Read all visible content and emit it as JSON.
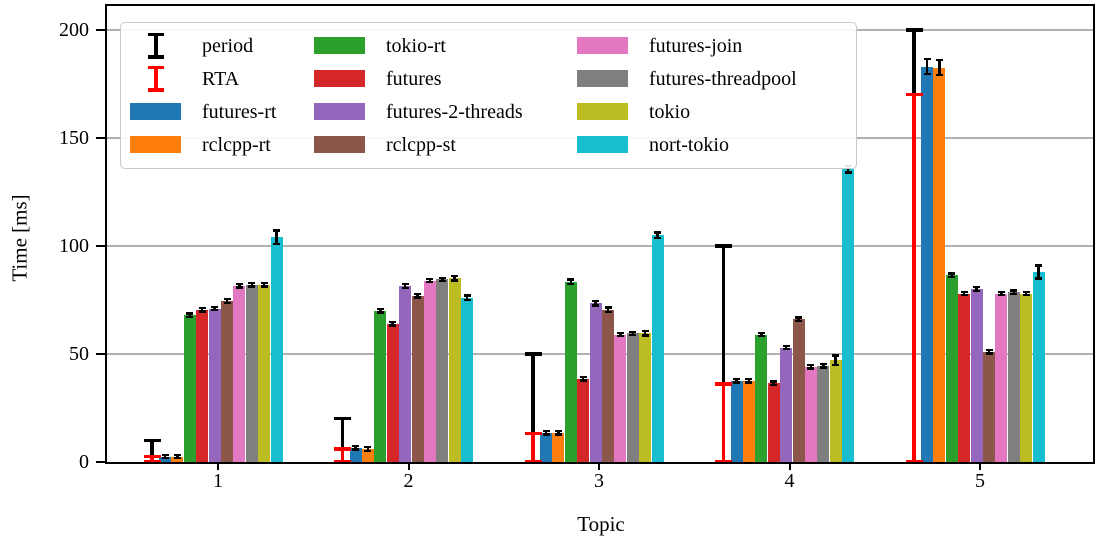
{
  "chart_data": {
    "type": "bar",
    "title": "",
    "xlabel": "Topic",
    "ylabel": "Time [ms]",
    "categories": [
      "1",
      "2",
      "3",
      "4",
      "5"
    ],
    "ylim": [
      0,
      211
    ],
    "yticks": [
      0,
      50,
      100,
      150,
      200
    ],
    "ytick_labels": [
      "0",
      "50",
      "100",
      "150",
      "200"
    ],
    "grid": "horizontal",
    "legend_position": "upper-left",
    "error_series": [
      {
        "name": "period",
        "color": "#000000",
        "low": [
          2.5,
          6,
          13,
          36,
          170
        ],
        "high": [
          10,
          20,
          50,
          100,
          200
        ]
      },
      {
        "name": "RTA",
        "color": "#ff0000",
        "low": [
          0,
          0,
          0,
          0,
          0
        ],
        "high": [
          2.5,
          6,
          13,
          36,
          170
        ]
      }
    ],
    "series": [
      {
        "name": "futures-rt",
        "color": "#1f77b4",
        "values": [
          2.5,
          6.5,
          13.5,
          37.5,
          183
        ],
        "err": [
          0.8,
          0.8,
          0.8,
          0.8,
          3.5
        ]
      },
      {
        "name": "rclcpp-rt",
        "color": "#ff7f0e",
        "values": [
          2.5,
          6,
          13.5,
          37.5,
          182.5
        ],
        "err": [
          0.8,
          0.8,
          0.8,
          0.8,
          3.5
        ]
      },
      {
        "name": "tokio-rt",
        "color": "#2ca02c",
        "values": [
          68,
          70,
          83.5,
          59,
          86.5
        ],
        "err": [
          0.8,
          0.8,
          1,
          0.8,
          0.8
        ]
      },
      {
        "name": "futures",
        "color": "#d62728",
        "values": [
          70.5,
          64,
          38.5,
          36.5,
          78
        ],
        "err": [
          0.8,
          0.8,
          0.8,
          0.8,
          0.8
        ]
      },
      {
        "name": "futures-2-threads",
        "color": "#9467bd",
        "values": [
          71,
          81.5,
          73.5,
          53,
          80
        ],
        "err": [
          0.8,
          1,
          1,
          0.8,
          1
        ]
      },
      {
        "name": "rclcpp-st",
        "color": "#8c564b",
        "values": [
          74.5,
          77,
          70.5,
          66,
          51
        ],
        "err": [
          1,
          0.8,
          1,
          0.8,
          0.8
        ]
      },
      {
        "name": "futures-join",
        "color": "#e377c2",
        "values": [
          81.5,
          84,
          59,
          44,
          78
        ],
        "err": [
          0.8,
          0.8,
          0.8,
          0.8,
          0.8
        ]
      },
      {
        "name": "futures-threadpool",
        "color": "#7f7f7f",
        "values": [
          82,
          84.5,
          59.5,
          44.5,
          78.5
        ],
        "err": [
          0.8,
          0.8,
          0.8,
          0.8,
          0.8
        ]
      },
      {
        "name": "tokio",
        "color": "#bcbd22",
        "values": [
          82,
          85,
          59.5,
          47,
          78
        ],
        "err": [
          0.8,
          1,
          1,
          2.2,
          0.8
        ]
      },
      {
        "name": "nort-tokio",
        "color": "#17becf",
        "values": [
          104,
          76,
          105,
          135.5,
          88
        ],
        "err": [
          3.2,
          1,
          1.2,
          1.5,
          3
        ]
      }
    ],
    "legend_columns": [
      [
        "period",
        "RTA",
        "futures-rt",
        "rclcpp-rt"
      ],
      [
        "tokio-rt",
        "futures",
        "futures-2-threads",
        "rclcpp-st"
      ],
      [
        "futures-join",
        "futures-threadpool",
        "tokio",
        "nort-tokio"
      ]
    ]
  }
}
